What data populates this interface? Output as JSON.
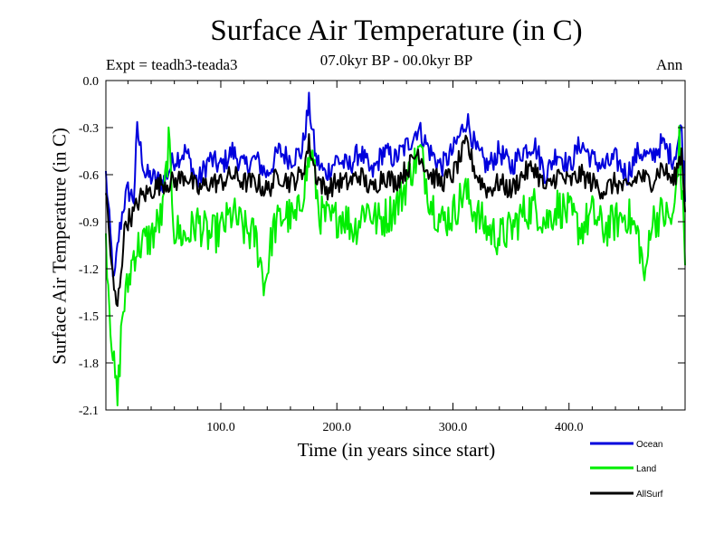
{
  "colors": {
    "ocean": "#0000dd",
    "land": "#00ee00",
    "allsurf": "#000000",
    "axis": "#000000"
  },
  "header": {
    "title": "Surface Air Temperature (in C)",
    "experiment": "Expt = teadh3-teada3",
    "period": "07.0kyr BP - 00.0kyr BP",
    "season": "Ann"
  },
  "chart_data": {
    "type": "line",
    "title": "Surface Air Temperature (in C)",
    "xlabel": "Time (in years since start)",
    "ylabel": "Surface Air Temperature (in C)",
    "xlim": [
      1,
      500
    ],
    "ylim": [
      -2.1,
      0.0
    ],
    "xticks": [
      100,
      200,
      300,
      400
    ],
    "xtick_labels": [
      "100.0",
      "200.0",
      "300.0",
      "400.0"
    ],
    "yticks": [
      0.0,
      -0.3,
      -0.6,
      -0.9,
      -1.2,
      -1.5,
      -1.8,
      -2.1
    ],
    "ytick_labels": [
      "0.0",
      "-0.3",
      "-0.6",
      "-0.9",
      "-1.2",
      "-1.5",
      "-1.8",
      "-2.1"
    ],
    "legend_position": "bottom-right, outside plot",
    "series": [
      {
        "name": "Ocean",
        "anchors": [
          [
            1,
            -0.6
          ],
          [
            4,
            -0.9
          ],
          [
            8,
            -1.3
          ],
          [
            12,
            -1.0
          ],
          [
            16,
            -0.8
          ],
          [
            20,
            -0.7
          ],
          [
            25,
            -0.75
          ],
          [
            28,
            -0.32
          ],
          [
            35,
            -0.6
          ],
          [
            50,
            -0.65
          ],
          [
            60,
            -0.5
          ],
          [
            70,
            -0.45
          ],
          [
            80,
            -0.65
          ],
          [
            90,
            -0.5
          ],
          [
            100,
            -0.55
          ],
          [
            110,
            -0.45
          ],
          [
            120,
            -0.55
          ],
          [
            130,
            -0.5
          ],
          [
            140,
            -0.6
          ],
          [
            150,
            -0.45
          ],
          [
            160,
            -0.5
          ],
          [
            170,
            -0.45
          ],
          [
            176,
            -0.15
          ],
          [
            182,
            -0.5
          ],
          [
            190,
            -0.6
          ],
          [
            200,
            -0.5
          ],
          [
            210,
            -0.55
          ],
          [
            220,
            -0.45
          ],
          [
            230,
            -0.6
          ],
          [
            240,
            -0.45
          ],
          [
            250,
            -0.5
          ],
          [
            262,
            -0.4
          ],
          [
            270,
            -0.3
          ],
          [
            280,
            -0.45
          ],
          [
            290,
            -0.55
          ],
          [
            300,
            -0.45
          ],
          [
            306,
            -0.35
          ],
          [
            312,
            -0.24
          ],
          [
            320,
            -0.45
          ],
          [
            330,
            -0.55
          ],
          [
            340,
            -0.45
          ],
          [
            350,
            -0.55
          ],
          [
            360,
            -0.45
          ],
          [
            370,
            -0.4
          ],
          [
            380,
            -0.6
          ],
          [
            390,
            -0.45
          ],
          [
            400,
            -0.55
          ],
          [
            410,
            -0.4
          ],
          [
            420,
            -0.5
          ],
          [
            430,
            -0.55
          ],
          [
            440,
            -0.5
          ],
          [
            450,
            -0.6
          ],
          [
            460,
            -0.45
          ],
          [
            470,
            -0.5
          ],
          [
            480,
            -0.4
          ],
          [
            490,
            -0.5
          ],
          [
            497,
            -0.3
          ],
          [
            500,
            -0.7
          ]
        ],
        "noise": 0.075
      },
      {
        "name": "Land",
        "anchors": [
          [
            1,
            -1.0
          ],
          [
            4,
            -1.4
          ],
          [
            8,
            -1.85
          ],
          [
            11,
            -2.05
          ],
          [
            15,
            -1.5
          ],
          [
            20,
            -1.3
          ],
          [
            25,
            -1.1
          ],
          [
            30,
            -1.05
          ],
          [
            40,
            -1.0
          ],
          [
            50,
            -0.85
          ],
          [
            55,
            -0.4
          ],
          [
            60,
            -0.95
          ],
          [
            70,
            -1.0
          ],
          [
            80,
            -0.9
          ],
          [
            90,
            -1.0
          ],
          [
            100,
            -0.95
          ],
          [
            110,
            -0.85
          ],
          [
            120,
            -0.95
          ],
          [
            130,
            -1.0
          ],
          [
            138,
            -1.3
          ],
          [
            145,
            -0.95
          ],
          [
            155,
            -0.85
          ],
          [
            165,
            -0.9
          ],
          [
            175,
            -0.55
          ],
          [
            178,
            -0.45
          ],
          [
            185,
            -0.85
          ],
          [
            195,
            -0.9
          ],
          [
            205,
            -0.85
          ],
          [
            215,
            -0.95
          ],
          [
            225,
            -0.8
          ],
          [
            235,
            -0.9
          ],
          [
            245,
            -0.85
          ],
          [
            255,
            -0.75
          ],
          [
            265,
            -0.55
          ],
          [
            272,
            -0.45
          ],
          [
            280,
            -0.75
          ],
          [
            290,
            -0.9
          ],
          [
            300,
            -0.85
          ],
          [
            310,
            -0.7
          ],
          [
            320,
            -0.85
          ],
          [
            330,
            -0.95
          ],
          [
            340,
            -1.0
          ],
          [
            350,
            -0.95
          ],
          [
            360,
            -0.85
          ],
          [
            370,
            -0.8
          ],
          [
            380,
            -0.9
          ],
          [
            390,
            -0.8
          ],
          [
            400,
            -0.85
          ],
          [
            410,
            -0.95
          ],
          [
            420,
            -0.85
          ],
          [
            430,
            -0.95
          ],
          [
            440,
            -0.9
          ],
          [
            450,
            -0.85
          ],
          [
            460,
            -1.0
          ],
          [
            466,
            -1.3
          ],
          [
            470,
            -0.9
          ],
          [
            480,
            -0.85
          ],
          [
            490,
            -0.9
          ],
          [
            495,
            -0.4
          ],
          [
            500,
            -1.1
          ]
        ],
        "noise": 0.13
      },
      {
        "name": "AllSurf",
        "anchors": [
          [
            1,
            -0.7
          ],
          [
            4,
            -1.0
          ],
          [
            8,
            -1.35
          ],
          [
            11,
            -1.45
          ],
          [
            14,
            -1.2
          ],
          [
            18,
            -0.9
          ],
          [
            25,
            -0.85
          ],
          [
            30,
            -0.75
          ],
          [
            40,
            -0.7
          ],
          [
            50,
            -0.65
          ],
          [
            60,
            -0.65
          ],
          [
            70,
            -0.6
          ],
          [
            80,
            -0.7
          ],
          [
            90,
            -0.65
          ],
          [
            100,
            -0.65
          ],
          [
            110,
            -0.6
          ],
          [
            120,
            -0.65
          ],
          [
            130,
            -0.65
          ],
          [
            140,
            -0.7
          ],
          [
            150,
            -0.6
          ],
          [
            160,
            -0.65
          ],
          [
            170,
            -0.6
          ],
          [
            176,
            -0.4
          ],
          [
            182,
            -0.6
          ],
          [
            190,
            -0.7
          ],
          [
            200,
            -0.65
          ],
          [
            210,
            -0.65
          ],
          [
            220,
            -0.6
          ],
          [
            230,
            -0.7
          ],
          [
            240,
            -0.6
          ],
          [
            250,
            -0.65
          ],
          [
            262,
            -0.55
          ],
          [
            270,
            -0.45
          ],
          [
            280,
            -0.6
          ],
          [
            290,
            -0.65
          ],
          [
            300,
            -0.6
          ],
          [
            306,
            -0.5
          ],
          [
            312,
            -0.4
          ],
          [
            320,
            -0.6
          ],
          [
            330,
            -0.7
          ],
          [
            340,
            -0.65
          ],
          [
            350,
            -0.7
          ],
          [
            360,
            -0.6
          ],
          [
            370,
            -0.55
          ],
          [
            380,
            -0.7
          ],
          [
            390,
            -0.6
          ],
          [
            400,
            -0.65
          ],
          [
            410,
            -0.6
          ],
          [
            420,
            -0.65
          ],
          [
            430,
            -0.7
          ],
          [
            440,
            -0.65
          ],
          [
            450,
            -0.7
          ],
          [
            460,
            -0.6
          ],
          [
            470,
            -0.65
          ],
          [
            480,
            -0.55
          ],
          [
            490,
            -0.65
          ],
          [
            497,
            -0.45
          ],
          [
            500,
            -0.8
          ]
        ],
        "noise": 0.07
      }
    ]
  }
}
